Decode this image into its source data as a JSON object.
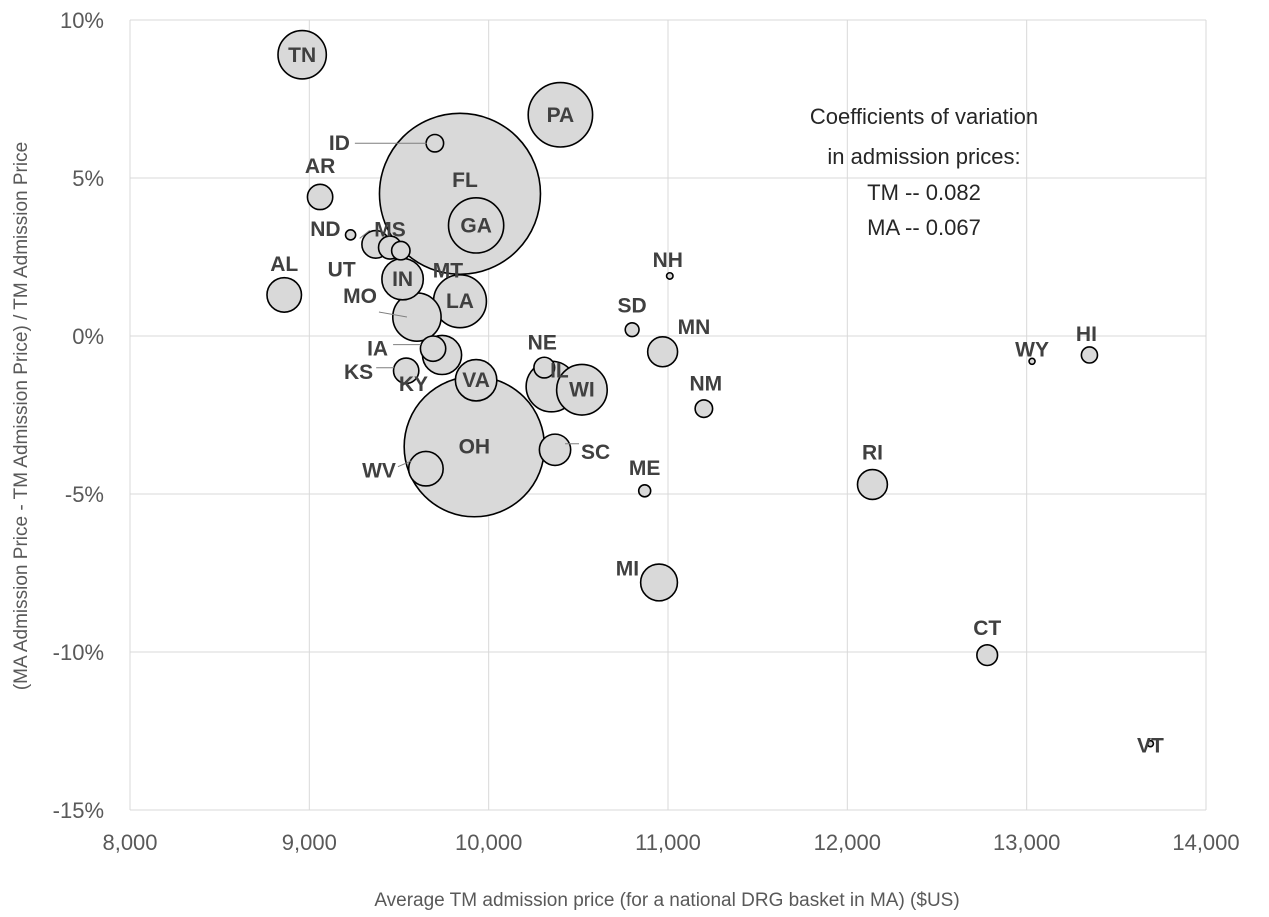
{
  "chart_data": {
    "type": "scatter",
    "title": "",
    "xlabel": "Average TM admission price (for a national DRG basket in MA) ($US)",
    "ylabel": "(MA Admission Price - TM Admission Price) / TM Admission Price",
    "xlim": [
      8000,
      14000
    ],
    "ylim": [
      -15,
      10
    ],
    "x_ticks": [
      8000,
      9000,
      10000,
      11000,
      12000,
      13000,
      14000
    ],
    "x_tick_labels": [
      "8,000",
      "9,000",
      "10,000",
      "11,000",
      "12,000",
      "13,000",
      "14,000"
    ],
    "y_ticks": [
      10,
      5,
      0,
      -5,
      -10,
      -15
    ],
    "y_tick_labels": [
      "10%",
      "5%",
      "0%",
      "-5%",
      "-10%",
      "-15%"
    ],
    "grid": true,
    "annotation": [
      "Coefficients  of variation",
      "in admission prices:",
      "TM -- 0.082",
      "MA -- 0.067"
    ],
    "points": [
      {
        "label": "TN",
        "x": 8960,
        "y": 8.9,
        "size": 1.05
      },
      {
        "label": "PA",
        "x": 10400,
        "y": 7.0,
        "size": 1.4
      },
      {
        "label": "ID",
        "x": 9700,
        "y": 6.1,
        "size": 0.38
      },
      {
        "label": "AR",
        "x": 9060,
        "y": 4.4,
        "size": 0.55
      },
      {
        "label": "FL",
        "x": 9840,
        "y": 4.5,
        "size": 3.5
      },
      {
        "label": "GA",
        "x": 9930,
        "y": 3.5,
        "size": 1.2
      },
      {
        "label": "MS",
        "x": 9450,
        "y": 2.8,
        "size": 0.5
      },
      {
        "label": "ND",
        "x": 9230,
        "y": 3.2,
        "size": 0.22
      },
      {
        "label": "UT",
        "x": 9370,
        "y": 2.9,
        "size": 0.6
      },
      {
        "label": "MT",
        "x": 9510,
        "y": 2.7,
        "size": 0.4
      },
      {
        "label": "IN",
        "x": 9520,
        "y": 1.8,
        "size": 0.9
      },
      {
        "label": "AL",
        "x": 8860,
        "y": 1.3,
        "size": 0.75
      },
      {
        "label": "LA",
        "x": 9840,
        "y": 1.1,
        "size": 1.15
      },
      {
        "label": "MO",
        "x": 9600,
        "y": 0.6,
        "size": 1.05
      },
      {
        "label": "IA",
        "x": 9690,
        "y": -0.4,
        "size": 0.55
      },
      {
        "label": "KY",
        "x": 9740,
        "y": -0.6,
        "size": 0.85
      },
      {
        "label": "KS",
        "x": 9540,
        "y": -1.1,
        "size": 0.55
      },
      {
        "label": "VA",
        "x": 9930,
        "y": -1.4,
        "size": 0.9
      },
      {
        "label": "NE",
        "x": 10310,
        "y": -1.0,
        "size": 0.45
      },
      {
        "label": "IL",
        "x": 10350,
        "y": -1.6,
        "size": 1.1
      },
      {
        "label": "WI",
        "x": 10520,
        "y": -1.7,
        "size": 1.1
      },
      {
        "label": "OH",
        "x": 9920,
        "y": -3.5,
        "size": 3.05
      },
      {
        "label": "WV",
        "x": 9650,
        "y": -4.2,
        "size": 0.75
      },
      {
        "label": "SC",
        "x": 10370,
        "y": -3.6,
        "size": 0.68
      },
      {
        "label": "NH",
        "x": 11010,
        "y": 1.9,
        "size": 0.14
      },
      {
        "label": "SD",
        "x": 10800,
        "y": 0.2,
        "size": 0.3
      },
      {
        "label": "MN",
        "x": 10970,
        "y": -0.5,
        "size": 0.65
      },
      {
        "label": "NM",
        "x": 11200,
        "y": -2.3,
        "size": 0.38
      },
      {
        "label": "ME",
        "x": 10870,
        "y": -4.9,
        "size": 0.26
      },
      {
        "label": "MI",
        "x": 10950,
        "y": -7.8,
        "size": 0.8
      },
      {
        "label": "RI",
        "x": 12140,
        "y": -4.7,
        "size": 0.65
      },
      {
        "label": "CT",
        "x": 12780,
        "y": -10.1,
        "size": 0.45
      },
      {
        "label": "WY",
        "x": 13030,
        "y": -0.8,
        "size": 0.12
      },
      {
        "label": "HI",
        "x": 13350,
        "y": -0.6,
        "size": 0.35
      },
      {
        "label": "VT",
        "x": 13690,
        "y": -12.9,
        "size": 0.1
      }
    ]
  }
}
